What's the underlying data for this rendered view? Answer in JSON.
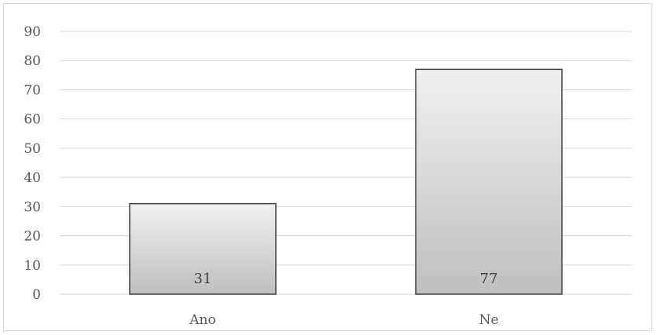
{
  "chart_data": {
    "type": "bar",
    "categories": [
      "Ano",
      "Ne"
    ],
    "values": [
      31,
      77
    ],
    "data_labels": [
      "31",
      "77"
    ],
    "title": "",
    "xlabel": "",
    "ylabel": "",
    "ylim": [
      0,
      90
    ],
    "yticks": [
      0,
      10,
      20,
      30,
      40,
      50,
      60,
      70,
      80,
      90
    ],
    "grid": true,
    "legend": "none",
    "colors": {
      "bar_fill_top": "#f0f0f0",
      "bar_fill_bottom": "#bfbfbf",
      "bar_stroke": "#404040",
      "grid": "#d9d9d9",
      "text": "#595959"
    }
  }
}
